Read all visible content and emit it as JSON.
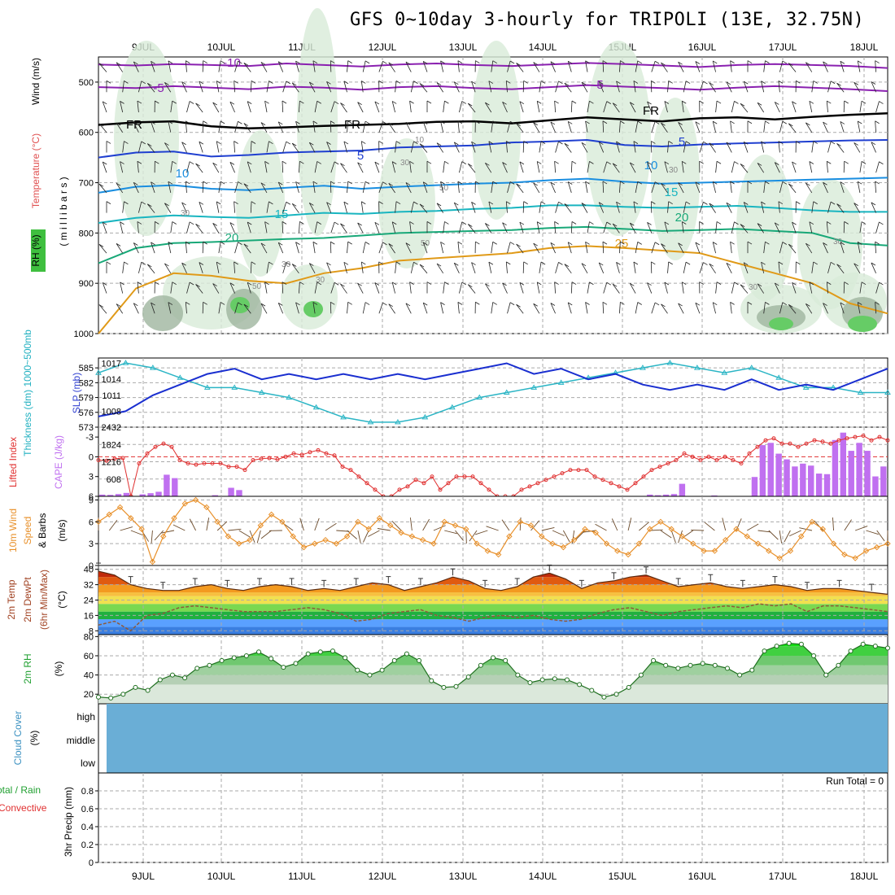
{
  "title": "GFS 0~10day 3-hourly for TRIPOLI (13E, 32.75N)",
  "days": [
    "9JUL",
    "10JUL",
    "11JUL",
    "12JUL",
    "13JUL",
    "14JUL",
    "15JUL",
    "16JUL",
    "17JUL",
    "18JUL"
  ],
  "run_total_label": "Run Total = 0",
  "cloud_levels": [
    "high",
    "middle",
    "low"
  ],
  "chart_data": [
    {
      "type": "line",
      "panel": "upper-air cross section",
      "ylabel_parts": [
        "Wind (m/s)",
        "Temperature (°C)",
        "RH (%)",
        "( m i l l i b a r s )"
      ],
      "y_ticks": [
        500,
        600,
        700,
        800,
        900,
        1000
      ],
      "ylim": [
        450,
        1000
      ],
      "isotherm_labels": [
        "-10",
        "-5",
        "-5",
        "FR",
        "FR",
        "FR",
        "5",
        "5",
        "10",
        "10",
        "15",
        "15",
        "20",
        "20",
        "25"
      ],
      "rh_labels": [
        "30",
        "30",
        "50",
        "50",
        "30",
        "30",
        "10",
        "30",
        "50",
        "30",
        "30"
      ],
      "isotherms": [
        {
          "name": "-10",
          "color": "#8a20b0",
          "values": [
            465,
            467,
            464,
            466,
            468,
            463,
            466,
            469,
            465,
            463,
            466,
            468,
            465,
            462,
            464,
            467,
            470,
            466,
            464,
            466,
            468,
            472
          ]
        },
        {
          "name": "-5",
          "color": "#8a20b0",
          "values": [
            510,
            512,
            508,
            511,
            514,
            509,
            511,
            515,
            510,
            508,
            512,
            514,
            510,
            506,
            509,
            512,
            515,
            511,
            508,
            511,
            514,
            518
          ]
        },
        {
          "name": "FR",
          "color": "#000000",
          "values": [
            585,
            580,
            578,
            588,
            592,
            590,
            587,
            585,
            583,
            579,
            578,
            582,
            576,
            570,
            574,
            578,
            572,
            570,
            574,
            569,
            565,
            562
          ]
        },
        {
          "name": "5",
          "color": "#1f3fd0",
          "values": [
            650,
            640,
            638,
            648,
            645,
            640,
            638,
            636,
            630,
            628,
            626,
            620,
            618,
            615,
            625,
            628,
            624,
            622,
            620,
            618,
            616,
            615
          ]
        },
        {
          "name": "10",
          "color": "#1a8ee0",
          "values": [
            720,
            708,
            705,
            712,
            715,
            710,
            706,
            712,
            708,
            705,
            702,
            700,
            695,
            692,
            698,
            702,
            700,
            698,
            696,
            694,
            692,
            690
          ]
        },
        {
          "name": "15",
          "color": "#19b5c0",
          "values": [
            780,
            770,
            765,
            768,
            770,
            765,
            760,
            762,
            758,
            756,
            752,
            750,
            745,
            745,
            748,
            750,
            748,
            746,
            750,
            755,
            758,
            758
          ]
        },
        {
          "name": "20",
          "color": "#18a878",
          "values": [
            860,
            830,
            820,
            818,
            815,
            812,
            810,
            805,
            800,
            798,
            796,
            794,
            790,
            788,
            792,
            796,
            794,
            792,
            796,
            800,
            820,
            825
          ]
        },
        {
          "name": "25",
          "color": "#e09a18",
          "values": [
            1000,
            910,
            880,
            885,
            895,
            900,
            880,
            870,
            855,
            850,
            845,
            840,
            830,
            826,
            830,
            835,
            840,
            860,
            880,
            900,
            940,
            960
          ]
        }
      ]
    },
    {
      "type": "line",
      "panel": "thickness and SLP",
      "ylabel_left": "Thickness (dm) 1000~500mb",
      "ylabel_right": "SLP (mb)",
      "left_ticks": [
        573,
        576,
        579,
        582,
        585
      ],
      "right_ticks": [
        1008,
        1011,
        1014,
        1017
      ],
      "ylim_thickness": [
        573,
        587
      ],
      "ylim_slp": [
        1005,
        1018
      ],
      "series": [
        {
          "name": "Thickness 1000~500mb",
          "color": "#2bb5c5",
          "values": [
            584,
            586,
            585,
            583,
            581,
            581,
            580,
            579,
            577,
            575,
            574,
            574,
            575,
            577,
            579,
            580,
            581,
            582,
            583,
            584,
            585,
            586,
            585,
            584,
            585,
            583,
            581,
            581,
            580,
            580
          ]
        },
        {
          "name": "SLP",
          "color": "#1a2fd0",
          "values": [
            1007,
            1008,
            1011,
            1013,
            1015,
            1016,
            1014,
            1015,
            1014,
            1015,
            1014,
            1015,
            1014,
            1015,
            1016,
            1017,
            1015,
            1016,
            1014,
            1015,
            1013,
            1012,
            1013,
            1012,
            1014,
            1012,
            1013,
            1012,
            1014,
            1016
          ]
        }
      ]
    },
    {
      "type": "bar",
      "panel": "lifted index and CAPE",
      "ylabel_left": "Lifted Index",
      "ylabel_right": "CAPE (J/kg)",
      "left_ticks": [
        "-3",
        "0",
        "3",
        "6"
      ],
      "right_ticks": [
        "608",
        "1216",
        "1824",
        "2432"
      ],
      "ylim_cape": [
        0,
        2432
      ],
      "ylim_li": [
        -4.5,
        6
      ],
      "series": [
        {
          "name": "CAPE",
          "color": "#c070f0",
          "values": [
            60,
            50,
            80,
            120,
            0,
            70,
            110,
            160,
            760,
            640,
            0,
            0,
            0,
            0,
            40,
            0,
            300,
            220,
            0,
            0,
            0,
            0,
            0,
            0,
            0,
            0,
            0,
            0,
            0,
            0,
            0,
            0,
            0,
            0,
            0,
            0,
            0,
            0,
            0,
            0,
            0,
            0,
            0,
            0,
            0,
            0,
            0,
            0,
            0,
            0,
            0,
            0,
            0,
            0,
            0,
            0,
            0,
            0,
            0,
            0,
            0,
            0,
            0,
            0,
            0,
            0,
            0,
            0,
            60,
            40,
            60,
            80,
            440,
            0,
            0,
            0,
            30,
            0,
            0,
            0,
            0,
            680,
            1800,
            1880,
            1500,
            1300,
            1050,
            1150,
            1080,
            800,
            780,
            1980,
            2240,
            1600,
            1880,
            1600,
            700,
            1050
          ]
        },
        {
          "name": "Lifted Index",
          "color": "#e03030",
          "values": [
            0.5,
            0.6,
            0.3,
            0.2,
            6,
            1,
            -0.5,
            -1.5,
            -2,
            -1.5,
            0.5,
            1,
            1.2,
            1,
            1,
            1,
            1.5,
            1.5,
            2,
            0.5,
            0.3,
            0.2,
            0.4,
            0,
            -0.5,
            -0.3,
            -0.7,
            -1,
            -0.5,
            -0.2,
            1.5,
            2,
            3,
            4,
            5,
            6,
            6,
            5,
            4.5,
            3.5,
            4,
            3,
            5,
            4,
            3,
            3,
            3,
            4,
            5,
            6,
            6,
            6,
            5,
            4.5,
            4,
            3.5,
            3,
            2.5,
            2,
            2,
            2,
            3,
            3.5,
            4,
            4.5,
            5,
            4,
            3,
            2,
            1.5,
            1,
            0.5,
            -0.5,
            0,
            0.5,
            0,
            0.5,
            0,
            0.5,
            1,
            -0.5,
            -1.5,
            -2.5,
            -2.8,
            -2,
            -2,
            -1.5,
            -2,
            -2.5,
            -2.3,
            -2,
            -2.5,
            -2.8,
            -3,
            -3.2,
            -2.5,
            -3,
            -2.5
          ]
        }
      ]
    },
    {
      "type": "line",
      "panel": "10m wind",
      "ylabel": "10m Wind Speed & Barbs (m/s)",
      "y_ticks": [
        0,
        3,
        6,
        9
      ],
      "ylim": [
        0,
        9.5
      ],
      "series": [
        {
          "name": "10m Wind Speed",
          "color": "#e8902a",
          "values": [
            6,
            7,
            8,
            6.5,
            5,
            0.5,
            4,
            6.5,
            8.5,
            9,
            8,
            6,
            4,
            3,
            3.5,
            5.5,
            7,
            6,
            4,
            2.5,
            3,
            3.5,
            3,
            4,
            6,
            5,
            6.5,
            5.5,
            4.5,
            4,
            3.5,
            3,
            6,
            5.5,
            5,
            3,
            2,
            1.5,
            4,
            6,
            5.5,
            4,
            3,
            2.5,
            3.5,
            5,
            4.5,
            3,
            2,
            1.5,
            3,
            5,
            6,
            5,
            4,
            3,
            2,
            2,
            3.5,
            5,
            4,
            3,
            2,
            1,
            2,
            4,
            6,
            5,
            3,
            1.5,
            1,
            2,
            2.5,
            3
          ]
        }
      ]
    },
    {
      "type": "area",
      "panel": "2m temperature",
      "ylabel": "2m Temp 2m DewPt (6hr Min/Max) (°C)",
      "y_ticks": [
        8,
        16,
        24,
        32,
        40
      ],
      "ylim": [
        6,
        42
      ],
      "series": [
        {
          "name": "2m Temp",
          "color": "#e07010",
          "values": [
            39,
            37,
            32,
            30,
            29,
            29,
            31,
            32,
            30,
            29,
            31,
            32,
            31,
            29,
            30,
            29,
            31,
            33,
            32,
            29,
            31,
            33,
            36,
            34,
            30,
            29,
            31,
            36,
            38,
            35,
            30,
            33,
            34,
            36,
            37,
            34,
            31,
            32,
            33,
            31,
            30,
            31,
            32,
            31,
            29,
            30,
            30,
            29,
            28,
            27
          ]
        },
        {
          "name": "2m DewPt",
          "color": "#8e5a3a",
          "values": [
            11,
            13,
            8,
            16,
            17,
            20,
            21,
            20,
            19,
            18,
            18,
            18,
            19,
            20,
            19,
            17,
            13,
            14,
            17,
            18,
            19,
            16,
            15,
            13,
            15,
            16,
            15,
            16,
            14,
            13,
            14,
            17,
            19,
            20,
            18,
            16,
            18,
            19,
            20,
            21,
            20,
            22,
            21,
            22,
            18,
            21,
            21,
            20,
            19,
            18
          ]
        }
      ]
    },
    {
      "type": "area",
      "panel": "2m RH",
      "ylabel": "2m RH (%)",
      "y_ticks": [
        20,
        40,
        60,
        80
      ],
      "ylim": [
        10,
        82
      ],
      "series": [
        {
          "name": "2m RH",
          "color": "#20a030",
          "values": [
            17,
            16,
            20,
            27,
            24,
            35,
            40,
            37,
            47,
            50,
            55,
            58,
            60,
            64,
            57,
            48,
            52,
            62,
            64,
            65,
            58,
            45,
            40,
            45,
            55,
            62,
            55,
            34,
            27,
            28,
            38,
            50,
            58,
            55,
            40,
            32,
            35,
            36,
            35,
            30,
            24,
            17,
            20,
            27,
            40,
            55,
            50,
            47,
            50,
            52,
            50,
            47,
            40,
            45,
            65,
            70,
            73,
            72,
            60,
            40,
            50,
            65,
            72,
            70,
            68
          ]
        }
      ]
    },
    {
      "type": "area",
      "panel": "cloud cover",
      "ylabel": "Cloud Cover (%)",
      "series": [
        {
          "name": "cloud",
          "color": "#6aaed6",
          "values": []
        }
      ]
    },
    {
      "type": "bar",
      "panel": "3hr precipitation",
      "ylabel": "3hr Precip (mm)",
      "ylabel_extra": [
        "Total / Rain",
        "Convective"
      ],
      "y_ticks": [
        "0",
        "0.2",
        "0.4",
        "0.6",
        "0.8"
      ],
      "ylim": [
        0,
        1
      ],
      "series": [
        {
          "name": "precip",
          "values": []
        }
      ]
    }
  ]
}
